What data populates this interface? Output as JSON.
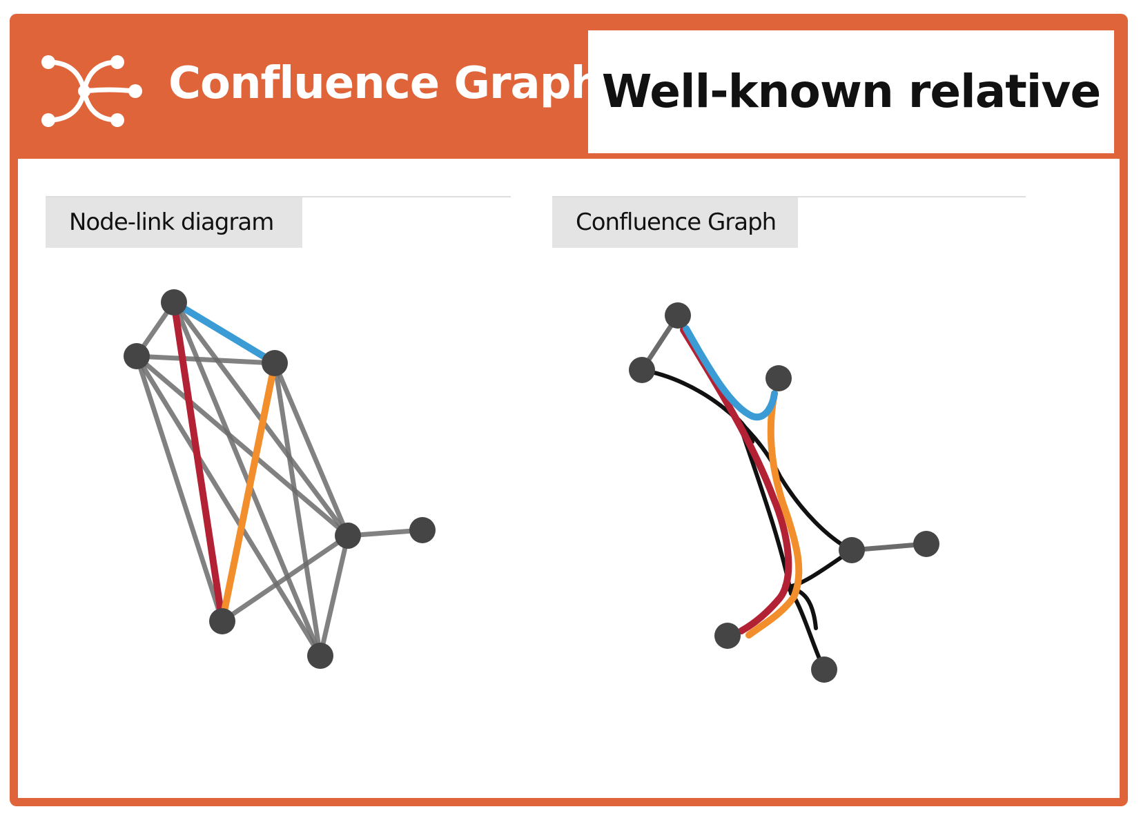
{
  "header": {
    "brand_title": "Confluence Graph",
    "logo_icon": "confluence-graph-icon",
    "topic_title": "Well-known relative",
    "accent_color": "#E0643A"
  },
  "panels": [
    {
      "label": "Node-link diagram"
    },
    {
      "label": "Confluence Graph"
    }
  ],
  "colors": {
    "node": "#454545",
    "edge_gray": "#6b6b6b",
    "edge_black": "#111111",
    "red": "#B22234",
    "orange": "#F28E2B",
    "blue": "#3A9BD5"
  }
}
